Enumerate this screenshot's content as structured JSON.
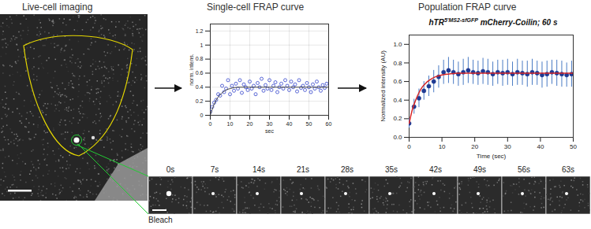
{
  "live_cell_imaging": {
    "heading": "Live-cell imaging",
    "filmstrip": {
      "frames": [
        "0s",
        "7s",
        "14s",
        "21s",
        "28s",
        "35s",
        "42s",
        "49s",
        "56s",
        "63s"
      ],
      "annotation": "Bleach"
    }
  },
  "chart_data": [
    {
      "heading": "Single-cell FRAP curve",
      "type": "scatter",
      "x_label": "sec",
      "y_label": "norm. intens.",
      "xlim": [
        0,
        60
      ],
      "ylim": [
        0,
        1.3
      ],
      "xticks": [
        0,
        10,
        20,
        30,
        40,
        50,
        60
      ],
      "yticks": [
        0,
        0.2,
        0.4,
        0.6,
        0.8,
        1,
        1.2
      ],
      "grid": true,
      "series": [
        {
          "type": "scatter",
          "marker": "open circle",
          "color": "#3344cc",
          "x": [
            0,
            1,
            2,
            3,
            4,
            5,
            6,
            7,
            8,
            9,
            10,
            11,
            12,
            13,
            14,
            15,
            16,
            17,
            18,
            19,
            20,
            21,
            22,
            23,
            24,
            25,
            26,
            27,
            28,
            29,
            30,
            31,
            32,
            33,
            34,
            35,
            36,
            37,
            38,
            39,
            40,
            41,
            42,
            43,
            44,
            45,
            46,
            47,
            48,
            49,
            50,
            51,
            52,
            53,
            54,
            55,
            56,
            57,
            58,
            59
          ],
          "values": [
            0.05,
            0.12,
            0.18,
            0.22,
            0.3,
            0.28,
            0.42,
            0.33,
            0.38,
            0.5,
            0.3,
            0.42,
            0.35,
            0.45,
            0.38,
            0.5,
            0.32,
            0.44,
            0.4,
            0.36,
            0.48,
            0.38,
            0.42,
            0.3,
            0.46,
            0.4,
            0.52,
            0.35,
            0.43,
            0.38,
            0.5,
            0.36,
            0.42,
            0.47,
            0.33,
            0.4,
            0.45,
            0.38,
            0.5,
            0.42,
            0.36,
            0.48,
            0.4,
            0.44,
            0.34,
            0.5,
            0.39,
            0.42,
            0.36,
            0.46,
            0.4,
            0.33,
            0.44,
            0.38,
            0.48,
            0.4,
            0.35,
            0.43,
            0.39,
            0.45
          ]
        },
        {
          "type": "line",
          "color": "#444444",
          "x": [
            0,
            2,
            4,
            6,
            8,
            10,
            15,
            20,
            30,
            40,
            50,
            60
          ],
          "values": [
            0,
            0.16,
            0.26,
            0.32,
            0.36,
            0.38,
            0.4,
            0.4,
            0.4,
            0.4,
            0.4,
            0.4
          ]
        }
      ]
    },
    {
      "heading": "Population FRAP curve",
      "type": "scatter",
      "title": {
        "base": "hTR",
        "sup": "5'MS2-sfGFP",
        "rest": " mCherry-Coilin; 60 s"
      },
      "x_label": "Time (sec)",
      "y_label": "Normalized intensity (AU)",
      "xlim": [
        0,
        50
      ],
      "ylim": [
        0,
        1.1
      ],
      "xticks": [
        0,
        10,
        20,
        30,
        40,
        50
      ],
      "yticks": [
        {
          "value": 0,
          "label": "0.0"
        },
        0.2,
        0.4,
        0.6,
        0.8,
        {
          "value": 1,
          "label": "1.0"
        }
      ],
      "grid": false,
      "series": [
        {
          "type": "scatter",
          "marker": "circle",
          "color": "#1f3a93",
          "error_color": "#4a7bc4",
          "x": [
            0,
            1.5,
            3,
            4.5,
            6,
            7.5,
            9,
            10.5,
            12,
            13.5,
            15,
            16.5,
            18,
            19.5,
            21,
            22.5,
            24,
            25.5,
            27,
            28.5,
            30,
            31.5,
            33,
            34.5,
            36,
            37.5,
            39,
            40.5,
            42,
            43.5,
            45,
            46.5,
            48,
            49.5
          ],
          "values": [
            0.15,
            0.33,
            0.42,
            0.5,
            0.55,
            0.6,
            0.65,
            0.7,
            0.72,
            0.7,
            0.68,
            0.7,
            0.72,
            0.7,
            0.69,
            0.71,
            0.7,
            0.68,
            0.7,
            0.69,
            0.7,
            0.68,
            0.7,
            0.69,
            0.68,
            0.7,
            0.69,
            0.67,
            0.68,
            0.7,
            0.69,
            0.68,
            0.67,
            0.68
          ],
          "errors": [
            0.05,
            0.08,
            0.1,
            0.1,
            0.11,
            0.12,
            0.12,
            0.13,
            0.14,
            0.13,
            0.13,
            0.14,
            0.14,
            0.13,
            0.13,
            0.14,
            0.14,
            0.13,
            0.13,
            0.14,
            0.14,
            0.13,
            0.14,
            0.13,
            0.14,
            0.14,
            0.13,
            0.14,
            0.14,
            0.13,
            0.14,
            0.14,
            0.13,
            0.14
          ]
        },
        {
          "type": "line",
          "color": "#d62728",
          "x": [
            0,
            1,
            2,
            3,
            4,
            5,
            6,
            8,
            10,
            12,
            15,
            20,
            30,
            40,
            50
          ],
          "values": [
            0.15,
            0.3,
            0.4,
            0.48,
            0.54,
            0.58,
            0.61,
            0.65,
            0.67,
            0.68,
            0.69,
            0.69,
            0.69,
            0.69,
            0.69
          ]
        }
      ]
    }
  ]
}
